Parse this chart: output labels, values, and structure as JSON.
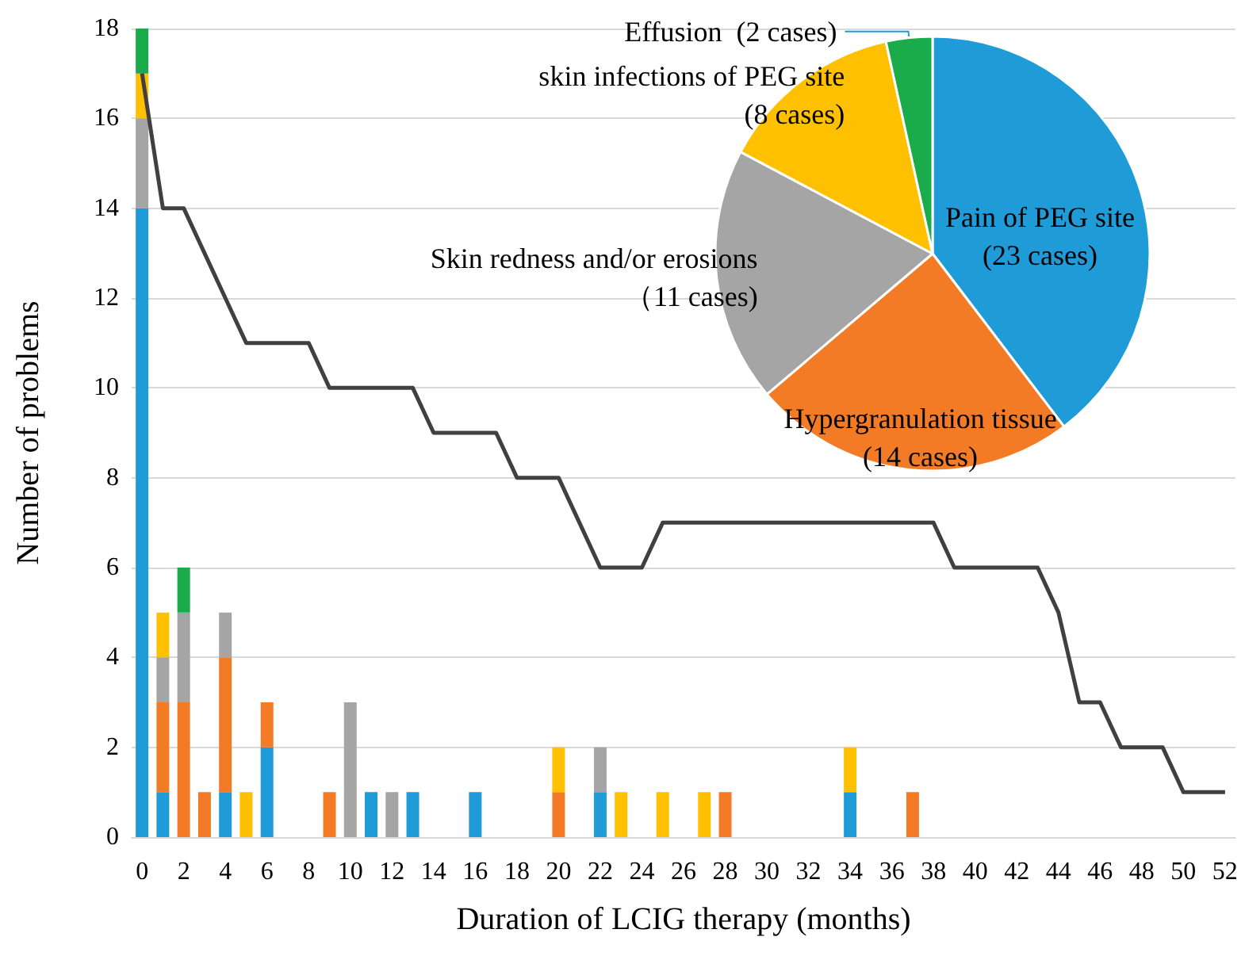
{
  "chart_data": [
    {
      "type": "bar",
      "stacked": true,
      "xlabel": "Duration of LCIG therapy (months)",
      "ylabel": "Number of problems",
      "ylim": [
        0,
        18
      ],
      "yticks": [
        0,
        2,
        4,
        6,
        8,
        10,
        12,
        14,
        16,
        18
      ],
      "grid": "y",
      "legend": false,
      "marker": "none",
      "x": [
        0,
        1,
        2,
        3,
        4,
        5,
        6,
        7,
        8,
        9,
        10,
        11,
        12,
        13,
        14,
        15,
        16,
        17,
        18,
        19,
        20,
        21,
        22,
        23,
        24,
        25,
        26,
        27,
        28,
        29,
        30,
        31,
        32,
        33,
        34,
        35,
        36,
        37,
        38,
        39,
        40,
        41,
        42,
        43,
        44,
        45,
        46,
        47,
        48,
        49,
        50,
        51,
        52
      ],
      "xlim": [
        -0.5,
        52.5
      ],
      "xticks": [
        0,
        2,
        4,
        6,
        8,
        10,
        12,
        14,
        16,
        18,
        20,
        22,
        24,
        26,
        28,
        30,
        32,
        34,
        36,
        38,
        40,
        42,
        44,
        46,
        48,
        50,
        52
      ],
      "series": [
        {
          "color": "#1f9bd7",
          "values": [
            14,
            1,
            null,
            null,
            1,
            null,
            2,
            null,
            null,
            null,
            null,
            1,
            null,
            1,
            null,
            null,
            1,
            null,
            null,
            null,
            null,
            null,
            1,
            null,
            null,
            null,
            null,
            null,
            null,
            null,
            null,
            null,
            null,
            null,
            1,
            null,
            null,
            null,
            null,
            null,
            null,
            null,
            null,
            null,
            null,
            null,
            null,
            null,
            null,
            null,
            null,
            null,
            null
          ]
        },
        {
          "color": "#f47b25",
          "values": [
            null,
            2,
            3,
            1,
            3,
            null,
            1,
            null,
            null,
            1,
            null,
            null,
            null,
            null,
            null,
            null,
            null,
            null,
            null,
            null,
            1,
            null,
            null,
            null,
            null,
            null,
            null,
            null,
            1,
            null,
            null,
            null,
            null,
            null,
            null,
            null,
            null,
            1,
            null,
            null,
            null,
            null,
            null,
            null,
            null,
            null,
            null,
            null,
            null,
            null,
            null,
            null,
            null
          ]
        },
        {
          "color": "#a5a5a5",
          "values": [
            2,
            1,
            2,
            null,
            1,
            null,
            null,
            null,
            null,
            null,
            3,
            null,
            1,
            null,
            null,
            null,
            null,
            null,
            null,
            null,
            null,
            null,
            1,
            null,
            null,
            null,
            null,
            null,
            null,
            null,
            null,
            null,
            null,
            null,
            null,
            null,
            null,
            null,
            null,
            null,
            null,
            null,
            null,
            null,
            null,
            null,
            null,
            null,
            null,
            null,
            null,
            null,
            null
          ]
        },
        {
          "color": "#ffc000",
          "values": [
            1,
            1,
            null,
            null,
            null,
            1,
            null,
            null,
            null,
            null,
            null,
            null,
            null,
            null,
            null,
            null,
            null,
            null,
            null,
            null,
            1,
            null,
            null,
            1,
            null,
            1,
            null,
            1,
            null,
            null,
            null,
            null,
            null,
            null,
            1,
            null,
            null,
            null,
            null,
            null,
            null,
            null,
            null,
            null,
            null,
            null,
            null,
            null,
            null,
            null,
            null,
            null,
            null
          ]
        },
        {
          "color": "#1aab4a",
          "values": [
            1,
            null,
            1,
            null,
            null,
            null,
            null,
            null,
            null,
            null,
            null,
            null,
            null,
            null,
            null,
            null,
            null,
            null,
            null,
            null,
            null,
            null,
            null,
            null,
            null,
            null,
            null,
            null,
            null,
            null,
            null,
            null,
            null,
            null,
            null,
            null,
            null,
            null,
            null,
            null,
            null,
            null,
            null,
            null,
            null,
            null,
            null,
            null,
            null,
            null,
            null,
            null,
            null
          ]
        },
        {
          "type": "line",
          "color": "#404040",
          "values": [
            17,
            14,
            14,
            13,
            12,
            11,
            11,
            11,
            11,
            10,
            10,
            10,
            10,
            10,
            9,
            9,
            9,
            9,
            8,
            8,
            8,
            7,
            6,
            6,
            6,
            7,
            7,
            7,
            7,
            7,
            7,
            7,
            7,
            7,
            7,
            7,
            7,
            7,
            7,
            6,
            6,
            6,
            6,
            6,
            5,
            3,
            3,
            2,
            2,
            2,
            1,
            1,
            1
          ]
        }
      ]
    },
    {
      "type": "pie",
      "categories": [
        "Pain of PEG site",
        "Hypergranulation tissue",
        "Skin redness and/or erosions",
        "skin infections of PEG site",
        "Effusion"
      ],
      "values": [
        23,
        14,
        11,
        8,
        2
      ],
      "value_labels": [
        "(23 cases)",
        "(14 cases)",
        "（11 cases)",
        "(8 cases)",
        "(2 cases)"
      ],
      "colors": [
        "#1f9bd7",
        "#f47b25",
        "#a5a5a5",
        "#ffc000",
        "#1aab4a"
      ],
      "legend": false
    }
  ]
}
